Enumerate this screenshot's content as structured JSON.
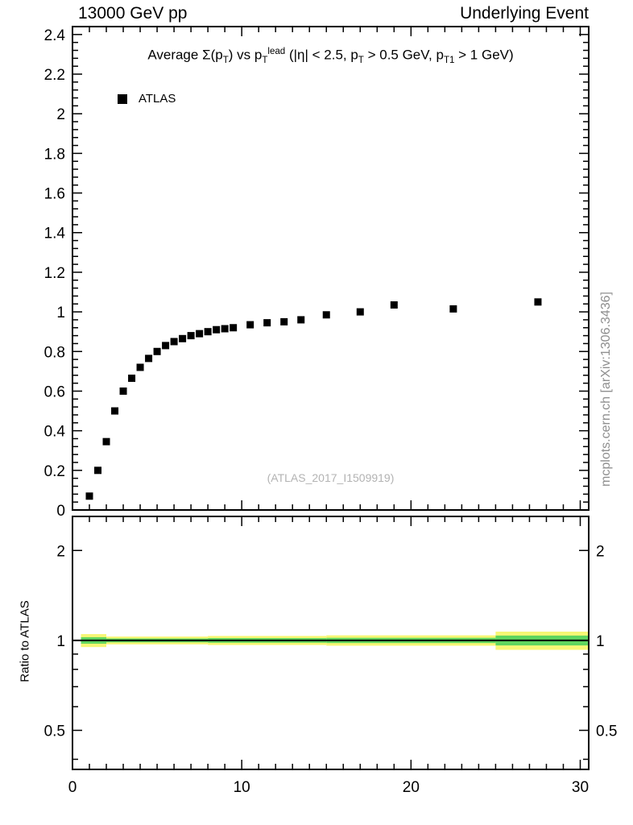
{
  "header": {
    "left": "13000 GeV pp",
    "right": "Underlying Event"
  },
  "title_rich": "Average Σ(p_{T}) vs p_{T}^{lead} (|η| < 2.5, p_{T} > 0.5 GeV, p_{T1} > 1 GeV)",
  "watermark": "(ATLAS_2017_I1509919)",
  "side_label": "mcplots.cern.ch [arXiv:1306.3436]",
  "legend": {
    "items": [
      {
        "label": "ATLAS",
        "marker": "filled-square",
        "color": "#000000"
      }
    ]
  },
  "chart_data": {
    "type": "scatter",
    "title": "Average Σ(p_T) vs p_T^lead (|η| < 2.5, p_T > 0.5 GeV, p_T1 > 1 GeV)",
    "xlabel": "",
    "xlim": [
      0,
      30.5
    ],
    "x_ticks_labeled": [
      0,
      10,
      20,
      30
    ],
    "x_minor_step": 1,
    "grid": "off",
    "legend_position": "top-left",
    "main": {
      "ylabel": "",
      "ylim": [
        0,
        2.44
      ],
      "yticks": [
        0,
        0.2,
        0.4,
        0.6,
        0.8,
        1,
        1.2,
        1.4,
        1.6,
        1.8,
        2,
        2.2,
        2.4
      ],
      "y_minor_step": 0.04,
      "series": [
        {
          "name": "ATLAS",
          "marker": "square",
          "color": "#000000",
          "x": [
            1,
            1.5,
            2,
            2.5,
            3,
            3.5,
            4,
            4.5,
            5,
            5.5,
            6,
            6.5,
            7,
            7.5,
            8,
            8.5,
            9,
            9.5,
            10.5,
            11.5,
            12.5,
            13.5,
            15,
            17,
            19,
            22.5,
            27.5
          ],
          "y": [
            0.07,
            0.2,
            0.345,
            0.5,
            0.6,
            0.665,
            0.72,
            0.765,
            0.8,
            0.83,
            0.85,
            0.865,
            0.88,
            0.89,
            0.9,
            0.91,
            0.915,
            0.92,
            0.935,
            0.945,
            0.95,
            0.96,
            0.985,
            1.0,
            1.035,
            1.015,
            1.05
          ]
        }
      ]
    },
    "ratio": {
      "ylabel": "Ratio to ATLAS",
      "yscale": "log",
      "ylim": [
        0.37,
        2.6
      ],
      "yticks": [
        0.5,
        1,
        2
      ],
      "y_minor": [
        0.4,
        0.6,
        0.7,
        0.8,
        0.9
      ],
      "reference_line": 1,
      "bands": {
        "yellow": {
          "color": "#f7f775",
          "segments": [
            [
              0.5,
              2,
              0.95,
              1.05
            ],
            [
              2,
              8,
              0.97,
              1.03
            ],
            [
              8,
              15,
              0.965,
              1.035
            ],
            [
              15,
              25,
              0.96,
              1.04
            ],
            [
              25,
              30.5,
              0.93,
              1.07
            ]
          ]
        },
        "green": {
          "color": "#5fd55f",
          "segments": [
            [
              0.5,
              2,
              0.975,
              1.025
            ],
            [
              2,
              8,
              0.985,
              1.015
            ],
            [
              8,
              15,
              0.982,
              1.018
            ],
            [
              15,
              25,
              0.98,
              1.02
            ],
            [
              25,
              30.5,
              0.962,
              1.038
            ]
          ]
        }
      }
    }
  }
}
